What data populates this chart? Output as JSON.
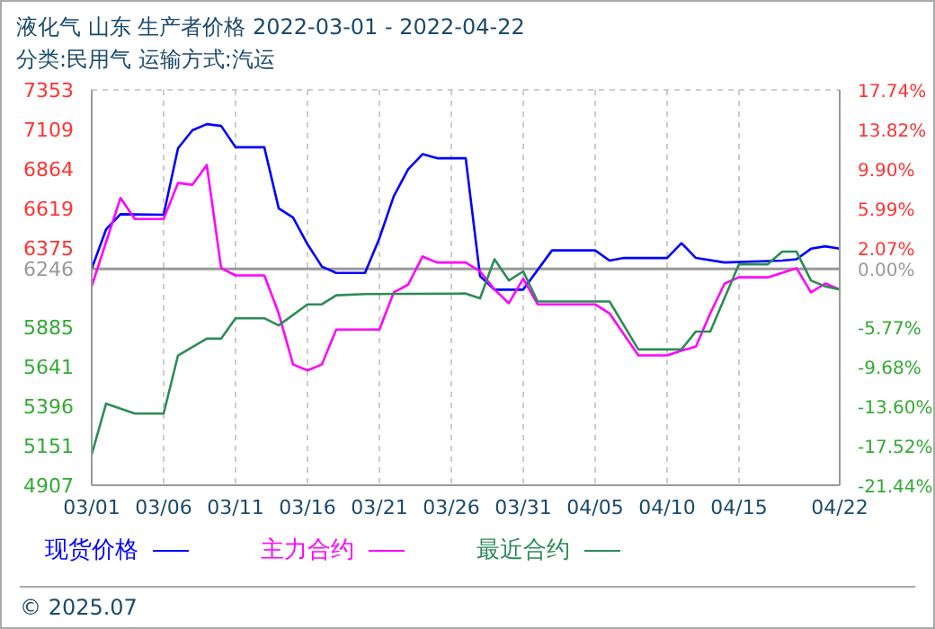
{
  "chart_data": {
    "type": "line",
    "title": "液化气 山东 生产者价格 2022-03-01 - 2022-04-22",
    "subtitle": "分类:民用气 运输方式:汽运",
    "xlim": [
      "2022-03-01",
      "2022-04-22"
    ],
    "xticks": [
      {
        "value": "2022-03-01",
        "label": "03/01"
      },
      {
        "value": "2022-03-06",
        "label": "03/06"
      },
      {
        "value": "2022-03-11",
        "label": "03/11"
      },
      {
        "value": "2022-03-16",
        "label": "03/16"
      },
      {
        "value": "2022-03-21",
        "label": "03/21"
      },
      {
        "value": "2022-03-26",
        "label": "03/26"
      },
      {
        "value": "2022-03-31",
        "label": "03/31"
      },
      {
        "value": "2022-04-05",
        "label": "04/05"
      },
      {
        "value": "2022-04-10",
        "label": "04/10"
      },
      {
        "value": "2022-04-15",
        "label": "04/15"
      },
      {
        "value": "2022-04-22",
        "label": "04/22"
      }
    ],
    "ylim": [
      4907,
      7353
    ],
    "yticks": [
      4907,
      5151,
      5396,
      5641,
      5885,
      6246,
      6375,
      6619,
      6864,
      7109,
      7353
    ],
    "y2lim": [
      -21.44,
      17.74
    ],
    "y2ticks": [
      {
        "value": -21.44,
        "label": "-21.44%"
      },
      {
        "value": -17.52,
        "label": "-17.52%"
      },
      {
        "value": -13.6,
        "label": "-13.60%"
      },
      {
        "value": -9.68,
        "label": "-9.68%"
      },
      {
        "value": -5.77,
        "label": "-5.77%"
      },
      {
        "value": 0,
        "label": "0.00%"
      },
      {
        "value": 2.07,
        "label": "2.07%"
      },
      {
        "value": 5.99,
        "label": "5.99%"
      },
      {
        "value": 9.9,
        "label": "9.90%"
      },
      {
        "value": 13.82,
        "label": "13.82%"
      },
      {
        "value": 17.74,
        "label": "17.74%"
      }
    ],
    "grid": true,
    "legend": "bottom",
    "line_style": "solid",
    "marker": "none",
    "ref_lines": [
      {
        "axis": "y",
        "value": 6246,
        "color": "#999999"
      }
    ],
    "annotations": [
      "© 2025.07"
    ],
    "series": [
      {
        "name": "现货价格",
        "color": "#0000ff",
        "x": [
          "2022-03-01",
          "2022-03-02",
          "2022-03-03",
          "2022-03-06",
          "2022-03-07",
          "2022-03-08",
          "2022-03-09",
          "2022-03-10",
          "2022-03-11",
          "2022-03-13",
          "2022-03-14",
          "2022-03-15",
          "2022-03-16",
          "2022-03-17",
          "2022-03-18",
          "2022-03-20",
          "2022-03-21",
          "2022-03-22",
          "2022-03-23",
          "2022-03-24",
          "2022-03-25",
          "2022-03-27",
          "2022-03-28",
          "2022-03-29",
          "2022-03-31",
          "2022-04-02",
          "2022-04-05",
          "2022-04-06",
          "2022-04-07",
          "2022-04-10",
          "2022-04-11",
          "2022-04-12",
          "2022-04-14",
          "2022-04-18",
          "2022-04-19",
          "2022-04-20",
          "2022-04-21",
          "2022-04-22"
        ],
        "values": [
          6246,
          6490,
          6584,
          6580,
          6992,
          7103,
          7141,
          7130,
          6998,
          6998,
          6620,
          6563,
          6398,
          6260,
          6220,
          6220,
          6435,
          6695,
          6862,
          6955,
          6930,
          6930,
          6200,
          6117,
          6117,
          6360,
          6360,
          6297,
          6313,
          6313,
          6405,
          6313,
          6285,
          6297,
          6305,
          6370,
          6385,
          6370
        ]
      },
      {
        "name": "主力合约",
        "color": "#ff00ff",
        "x": [
          "2022-03-01",
          "2022-03-03",
          "2022-03-04",
          "2022-03-06",
          "2022-03-07",
          "2022-03-08",
          "2022-03-09",
          "2022-03-10",
          "2022-03-11",
          "2022-03-13",
          "2022-03-14",
          "2022-03-15",
          "2022-03-16",
          "2022-03-17",
          "2022-03-18",
          "2022-03-21",
          "2022-03-22",
          "2022-03-23",
          "2022-03-24",
          "2022-03-25",
          "2022-03-27",
          "2022-03-28",
          "2022-03-29",
          "2022-03-30",
          "2022-03-31",
          "2022-04-01",
          "2022-04-05",
          "2022-04-06",
          "2022-04-08",
          "2022-04-10",
          "2022-04-11",
          "2022-04-12",
          "2022-04-13",
          "2022-04-14",
          "2022-04-15",
          "2022-04-17",
          "2022-04-19",
          "2022-04-20",
          "2022-04-21",
          "2022-04-22"
        ],
        "values": [
          6138,
          6684,
          6554,
          6554,
          6777,
          6766,
          6888,
          6250,
          6205,
          6205,
          5970,
          5654,
          5617,
          5654,
          5870,
          5870,
          6100,
          6148,
          6322,
          6285,
          6285,
          6230,
          6118,
          6033,
          6185,
          6026,
          6026,
          5970,
          5710,
          5710,
          5740,
          5765,
          5970,
          6155,
          6193,
          6193,
          6250,
          6100,
          6155,
          6118
        ]
      },
      {
        "name": "最近合约",
        "color": "#2e8b57",
        "x": [
          "2022-03-01",
          "2022-03-02",
          "2022-03-04",
          "2022-03-06",
          "2022-03-07",
          "2022-03-09",
          "2022-03-10",
          "2022-03-11",
          "2022-03-13",
          "2022-03-14",
          "2022-03-16",
          "2022-03-17",
          "2022-03-18",
          "2022-03-20",
          "2022-03-27",
          "2022-03-28",
          "2022-03-29",
          "2022-03-30",
          "2022-03-31",
          "2022-04-01",
          "2022-04-06",
          "2022-04-08",
          "2022-04-11",
          "2022-04-12",
          "2022-04-13",
          "2022-04-15",
          "2022-04-17",
          "2022-04-18",
          "2022-04-19",
          "2022-04-20",
          "2022-04-21",
          "2022-04-22"
        ],
        "values": [
          5096,
          5412,
          5350,
          5350,
          5710,
          5814,
          5814,
          5940,
          5940,
          5896,
          6026,
          6026,
          6082,
          6090,
          6093,
          6063,
          6305,
          6174,
          6230,
          6044,
          6044,
          5747,
          5747,
          5858,
          5858,
          6274,
          6274,
          6352,
          6352,
          6174,
          6137,
          6118
        ]
      }
    ]
  }
}
